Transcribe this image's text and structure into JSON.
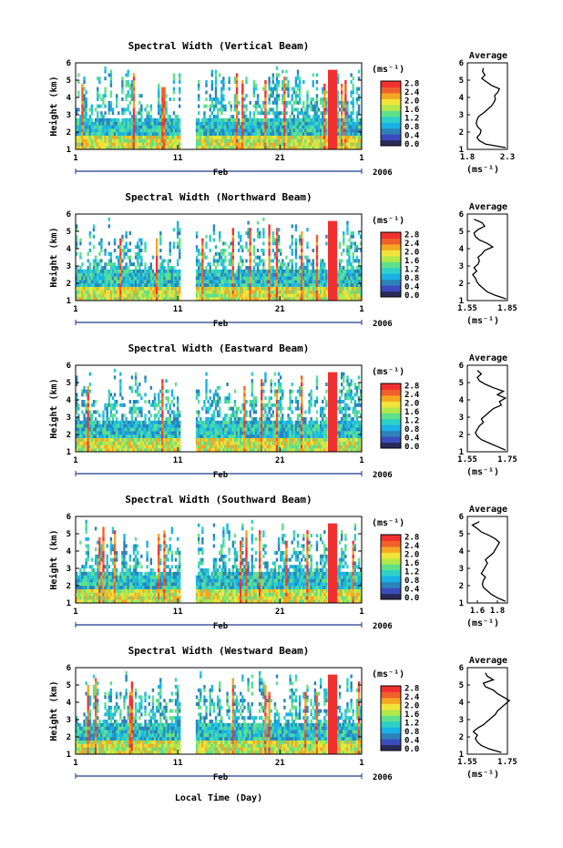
{
  "figure": {
    "xaxis_title": "Local Time (Day)"
  },
  "colors": {
    "scale": [
      "#2a2a5a",
      "#3b4cc0",
      "#2b83ba",
      "#19b2e6",
      "#2ed0c8",
      "#5fe08a",
      "#b3e84a",
      "#f2e33a",
      "#f5a623",
      "#f0602a",
      "#f23030"
    ]
  },
  "chart_data": [
    {
      "type": "heatmap",
      "title": "Spectral Width (Vertical Beam)",
      "ylabel": "Height (km)",
      "yticks": [
        "1",
        "2",
        "3",
        "4",
        "5",
        "6"
      ],
      "ylim": [
        1,
        6
      ],
      "xticks": [
        "1",
        "11",
        "21",
        "1"
      ],
      "xlim": [
        1,
        29
      ],
      "time_label": "Feb",
      "year_label": "2006",
      "colorbar": {
        "unit": "(ms⁻¹)",
        "ticks": [
          "0.0",
          "0.4",
          "0.8",
          "1.2",
          "1.6",
          "2.0",
          "2.4",
          "2.8"
        ]
      },
      "data_gap_days": [
        11.3,
        12.8
      ],
      "high_width_block_days": [
        25.7,
        26.6
      ],
      "profile": {
        "title": "Average",
        "xlabel": "(ms⁻¹)",
        "xticks": [
          "1.8",
          "2.3"
        ],
        "xlim": [
          1.8,
          2.3
        ],
        "yticks": [
          "1",
          "2",
          "3",
          "4",
          "5",
          "6"
        ],
        "height_km": [
          1.1,
          1.3,
          1.5,
          1.7,
          1.9,
          2.1,
          2.3,
          2.5,
          2.7,
          2.9,
          3.1,
          3.3,
          3.5,
          3.7,
          3.9,
          4.1,
          4.3,
          4.5,
          4.7,
          4.9,
          5.1,
          5.3,
          5.5,
          5.7
        ],
        "values": [
          2.28,
          2.03,
          1.95,
          1.92,
          1.96,
          1.97,
          1.93,
          1.91,
          1.92,
          1.94,
          2.0,
          2.05,
          2.1,
          2.13,
          2.15,
          2.14,
          2.18,
          2.2,
          2.1,
          2.04,
          1.98,
          2.02,
          1.99,
          2.0
        ]
      }
    },
    {
      "type": "heatmap",
      "title": "Spectral Width (Northward Beam)",
      "ylabel": "Height (km)",
      "yticks": [
        "1",
        "2",
        "3",
        "4",
        "5",
        "6"
      ],
      "ylim": [
        1,
        6
      ],
      "xticks": [
        "1",
        "11",
        "21",
        "1"
      ],
      "xlim": [
        1,
        29
      ],
      "time_label": "Feb",
      "year_label": "2006",
      "colorbar": {
        "unit": "(ms⁻¹)",
        "ticks": [
          "0.0",
          "0.4",
          "0.8",
          "1.2",
          "1.6",
          "2.0",
          "2.4",
          "2.8"
        ]
      },
      "data_gap_days": [
        11.3,
        12.8
      ],
      "high_width_block_days": [
        25.7,
        26.6
      ],
      "profile": {
        "title": "Average",
        "xlabel": "(ms⁻¹)",
        "xticks": [
          "1.55",
          "1.85"
        ],
        "xlim": [
          1.55,
          1.85
        ],
        "yticks": [
          "1",
          "2",
          "3",
          "4",
          "5",
          "6"
        ],
        "height_km": [
          1.1,
          1.3,
          1.5,
          1.7,
          1.9,
          2.1,
          2.3,
          2.5,
          2.7,
          2.9,
          3.1,
          3.3,
          3.5,
          3.7,
          3.9,
          4.1,
          4.3,
          4.5,
          4.7,
          4.9,
          5.1,
          5.3,
          5.5,
          5.7
        ],
        "values": [
          1.84,
          1.76,
          1.7,
          1.67,
          1.64,
          1.62,
          1.61,
          1.59,
          1.62,
          1.6,
          1.63,
          1.64,
          1.63,
          1.66,
          1.68,
          1.74,
          1.7,
          1.64,
          1.61,
          1.6,
          1.63,
          1.68,
          1.66,
          1.6
        ]
      }
    },
    {
      "type": "heatmap",
      "title": "Spectral Width (Eastward Beam)",
      "ylabel": "Height (km)",
      "yticks": [
        "1",
        "2",
        "3",
        "4",
        "5",
        "6"
      ],
      "ylim": [
        1,
        6
      ],
      "xticks": [
        "1",
        "11",
        "21",
        "1"
      ],
      "xlim": [
        1,
        29
      ],
      "time_label": "Feb",
      "year_label": "2006",
      "colorbar": {
        "unit": "(ms⁻¹)",
        "ticks": [
          "0.0",
          "0.4",
          "0.8",
          "1.2",
          "1.6",
          "2.0",
          "2.4",
          "2.8"
        ]
      },
      "data_gap_days": [
        11.3,
        12.8
      ],
      "high_width_block_days": [
        25.7,
        26.6
      ],
      "profile": {
        "title": "Average",
        "xlabel": "(ms⁻¹)",
        "xticks": [
          "1.55",
          "1.75"
        ],
        "xlim": [
          1.55,
          1.75
        ],
        "yticks": [
          "1",
          "2",
          "3",
          "4",
          "5",
          "6"
        ],
        "height_km": [
          1.1,
          1.3,
          1.5,
          1.7,
          1.9,
          2.1,
          2.3,
          2.5,
          2.7,
          2.9,
          3.1,
          3.3,
          3.5,
          3.7,
          3.9,
          4.1,
          4.3,
          4.5,
          4.7,
          4.9,
          5.1,
          5.3,
          5.5,
          5.7
        ],
        "values": [
          1.74,
          1.7,
          1.66,
          1.62,
          1.6,
          1.59,
          1.6,
          1.61,
          1.63,
          1.62,
          1.64,
          1.66,
          1.68,
          1.72,
          1.71,
          1.74,
          1.7,
          1.73,
          1.68,
          1.64,
          1.61,
          1.6,
          1.62,
          1.6
        ]
      }
    },
    {
      "type": "heatmap",
      "title": "Spectral Width (Southward Beam)",
      "ylabel": "Height (km)",
      "yticks": [
        "1",
        "2",
        "3",
        "4",
        "5",
        "6"
      ],
      "ylim": [
        1,
        6
      ],
      "xticks": [
        "1",
        "11",
        "21",
        "1"
      ],
      "xlim": [
        1,
        29
      ],
      "time_label": "Feb",
      "year_label": "2006",
      "colorbar": {
        "unit": "(ms⁻¹)",
        "ticks": [
          "0.0",
          "0.4",
          "0.8",
          "1.2",
          "1.6",
          "2.0",
          "2.4",
          "2.8"
        ]
      },
      "data_gap_days": [
        11.3,
        12.8
      ],
      "high_width_block_days": [
        25.7,
        26.6
      ],
      "profile": {
        "title": "Average",
        "xlabel": "(ms⁻¹)",
        "xticks": [
          "1.6",
          "1.8"
        ],
        "xlim": [
          1.5,
          1.9
        ],
        "yticks": [
          "1",
          "2",
          "3",
          "4",
          "5",
          "6"
        ],
        "height_km": [
          1.1,
          1.3,
          1.5,
          1.7,
          1.9,
          2.1,
          2.3,
          2.5,
          2.7,
          2.9,
          3.1,
          3.3,
          3.5,
          3.7,
          3.9,
          4.1,
          4.3,
          4.5,
          4.7,
          4.9,
          5.1,
          5.3,
          5.5,
          5.7
        ],
        "values": [
          1.88,
          1.8,
          1.74,
          1.7,
          1.66,
          1.65,
          1.66,
          1.68,
          1.64,
          1.66,
          1.68,
          1.7,
          1.68,
          1.72,
          1.76,
          1.78,
          1.8,
          1.82,
          1.78,
          1.72,
          1.64,
          1.6,
          1.55,
          1.62
        ]
      }
    },
    {
      "type": "heatmap",
      "title": "Spectral Width (Westward Beam)",
      "ylabel": "Height (km)",
      "yticks": [
        "1",
        "2",
        "3",
        "4",
        "5",
        "6"
      ],
      "ylim": [
        1,
        6
      ],
      "xticks": [
        "1",
        "11",
        "21",
        "1"
      ],
      "xlim": [
        1,
        29
      ],
      "time_label": "Feb",
      "year_label": "2006",
      "colorbar": {
        "unit": "(ms⁻¹)",
        "ticks": [
          "0.0",
          "0.4",
          "0.8",
          "1.2",
          "1.6",
          "2.0",
          "2.4",
          "2.8"
        ]
      },
      "data_gap_days": [
        11.3,
        12.8
      ],
      "high_width_block_days": [
        25.7,
        26.6
      ],
      "profile": {
        "title": "Average",
        "xlabel": "(ms⁻¹)",
        "xticks": [
          "1.55",
          "1.75"
        ],
        "xlim": [
          1.55,
          1.75
        ],
        "yticks": [
          "1",
          "2",
          "3",
          "4",
          "5",
          "6"
        ],
        "height_km": [
          1.1,
          1.3,
          1.5,
          1.7,
          1.9,
          2.1,
          2.3,
          2.5,
          2.7,
          2.9,
          3.1,
          3.3,
          3.5,
          3.7,
          3.9,
          4.1,
          4.3,
          4.5,
          4.7,
          4.9,
          5.1,
          5.3,
          5.5,
          5.7
        ],
        "values": [
          1.72,
          1.66,
          1.62,
          1.6,
          1.59,
          1.6,
          1.58,
          1.6,
          1.63,
          1.65,
          1.67,
          1.69,
          1.7,
          1.72,
          1.74,
          1.76,
          1.73,
          1.7,
          1.68,
          1.64,
          1.63,
          1.68,
          1.65,
          1.64
        ]
      }
    }
  ]
}
